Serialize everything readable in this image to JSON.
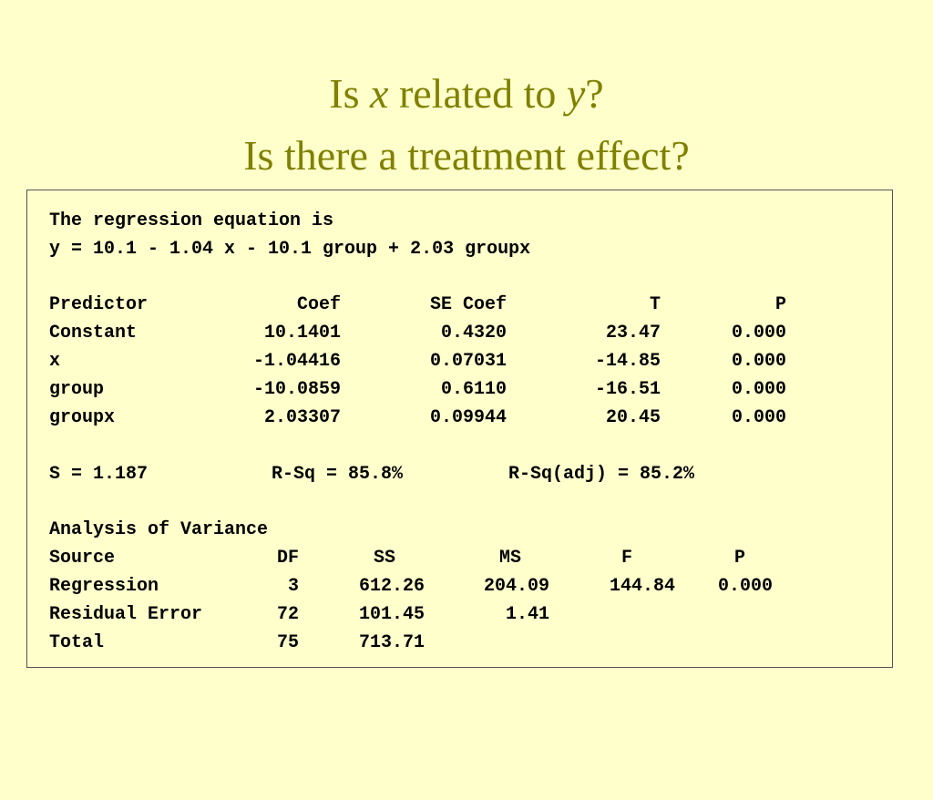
{
  "title": {
    "line1_pre": "Is ",
    "line1_var1": "x",
    "line1_mid": " related to ",
    "line1_var2": "y",
    "line1_post": "?",
    "line2": "Is there a treatment effect?"
  },
  "regression": {
    "header": "The regression equation is",
    "equation": "y = 10.1 - 1.04 x - 10.1 group + 2.03 groupx",
    "columns": [
      "Predictor",
      "Coef",
      "SE Coef",
      "T",
      "P"
    ],
    "rows": [
      [
        "Constant",
        "10.1401",
        "0.4320",
        "23.47",
        "0.000"
      ],
      [
        "x",
        "-1.04416",
        "0.07031",
        "-14.85",
        "0.000"
      ],
      [
        "group",
        "-10.0859",
        "0.6110",
        "-16.51",
        "0.000"
      ],
      [
        "groupx",
        "2.03307",
        "0.09944",
        "20.45",
        "0.000"
      ]
    ],
    "s": "S = 1.187",
    "rsq": "R-Sq = 85.8%",
    "rsq_adj": "R-Sq(adj) = 85.2%"
  },
  "anova": {
    "header": "Analysis of Variance",
    "columns": [
      "Source",
      "DF",
      "SS",
      "MS",
      "F",
      "P"
    ],
    "rows": [
      [
        "Regression",
        "3",
        "612.26",
        "204.09",
        "144.84",
        "0.000"
      ],
      [
        "Residual Error",
        "72",
        "101.45",
        "1.41",
        "",
        ""
      ],
      [
        "Total",
        "75",
        "713.71",
        "",
        "",
        ""
      ]
    ]
  }
}
